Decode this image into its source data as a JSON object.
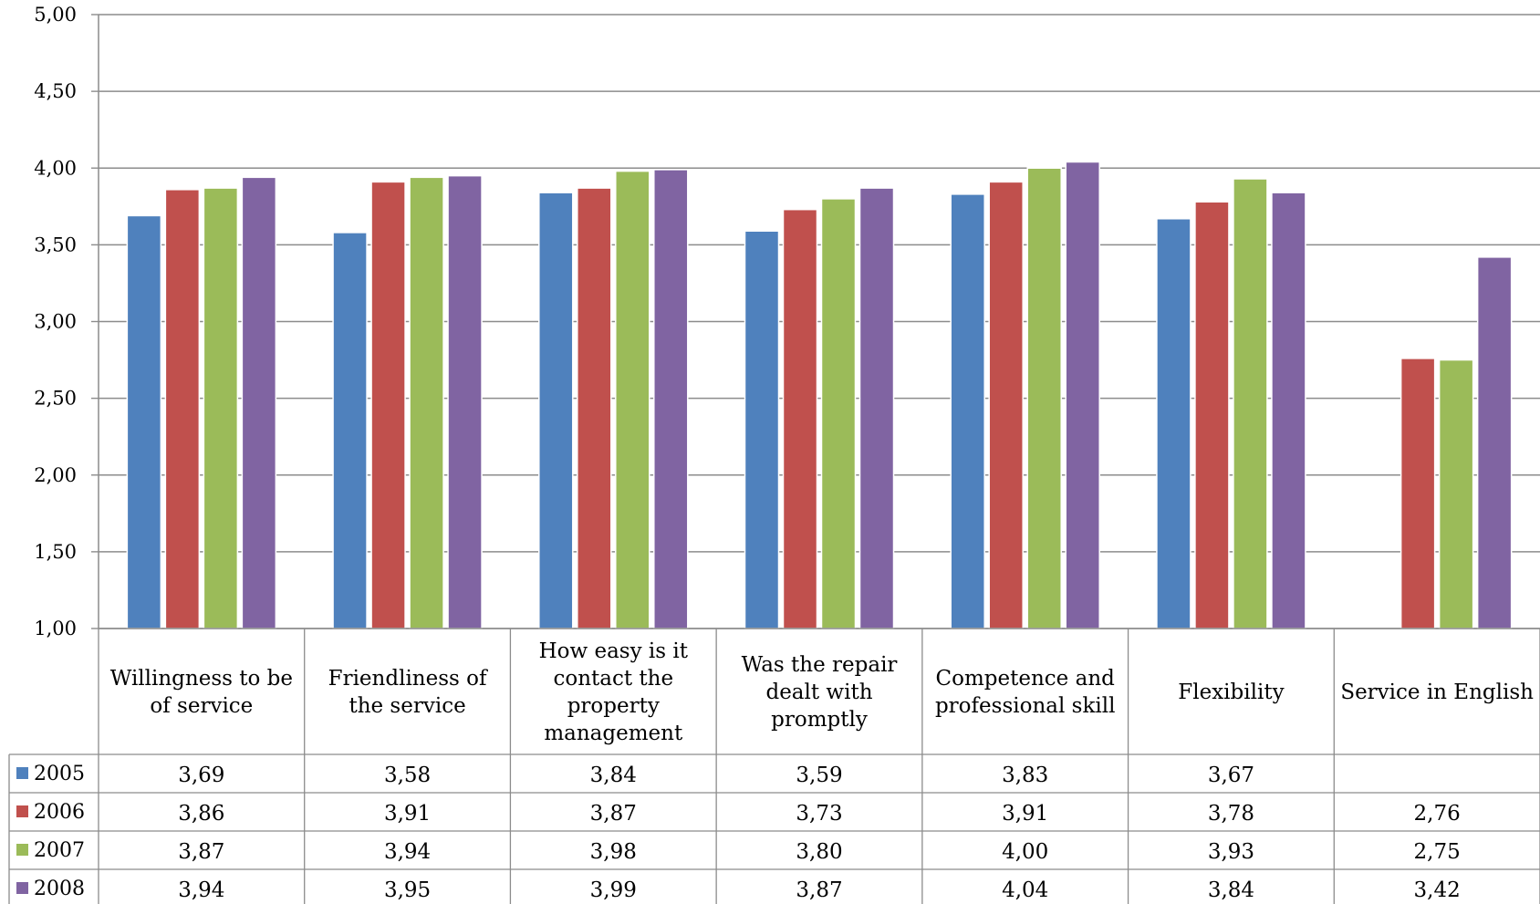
{
  "chart_data": {
    "type": "bar",
    "categories": [
      [
        "Willingness to be",
        "of service"
      ],
      [
        "Friendliness of",
        "the service"
      ],
      [
        "How easy is it",
        "contact the",
        "property",
        "management"
      ],
      [
        "Was the repair",
        "dealt with",
        "promptly"
      ],
      [
        "Competence and",
        "professional skill"
      ],
      [
        "Flexibility"
      ],
      [
        "Service in English"
      ]
    ],
    "series": [
      {
        "name": "2005",
        "color": "#4F81BD",
        "values": [
          3.69,
          3.58,
          3.84,
          3.59,
          3.83,
          3.67,
          null
        ],
        "labels": [
          "3,69",
          "3,58",
          "3,84",
          "3,59",
          "3,83",
          "3,67",
          ""
        ]
      },
      {
        "name": "2006",
        "color": "#C0504D",
        "values": [
          3.86,
          3.91,
          3.87,
          3.73,
          3.91,
          3.78,
          2.76
        ],
        "labels": [
          "3,86",
          "3,91",
          "3,87",
          "3,73",
          "3,91",
          "3,78",
          "2,76"
        ]
      },
      {
        "name": "2007",
        "color": "#9BBB59",
        "values": [
          3.87,
          3.94,
          3.98,
          3.8,
          4.0,
          3.93,
          2.75
        ],
        "labels": [
          "3,87",
          "3,94",
          "3,98",
          "3,80",
          "4,00",
          "3,93",
          "2,75"
        ]
      },
      {
        "name": "2008",
        "color": "#8064A2",
        "values": [
          3.94,
          3.95,
          3.99,
          3.87,
          4.04,
          3.84,
          3.42
        ],
        "labels": [
          "3,94",
          "3,95",
          "3,99",
          "3,87",
          "4,04",
          "3,84",
          "3,42"
        ]
      }
    ],
    "ylim": [
      1.0,
      5.0
    ],
    "yticks": [
      "1,00",
      "1,50",
      "2,00",
      "2,50",
      "3,00",
      "3,50",
      "4,00",
      "4,50",
      "5,00"
    ],
    "grid": true,
    "legend": "data-table-left"
  }
}
